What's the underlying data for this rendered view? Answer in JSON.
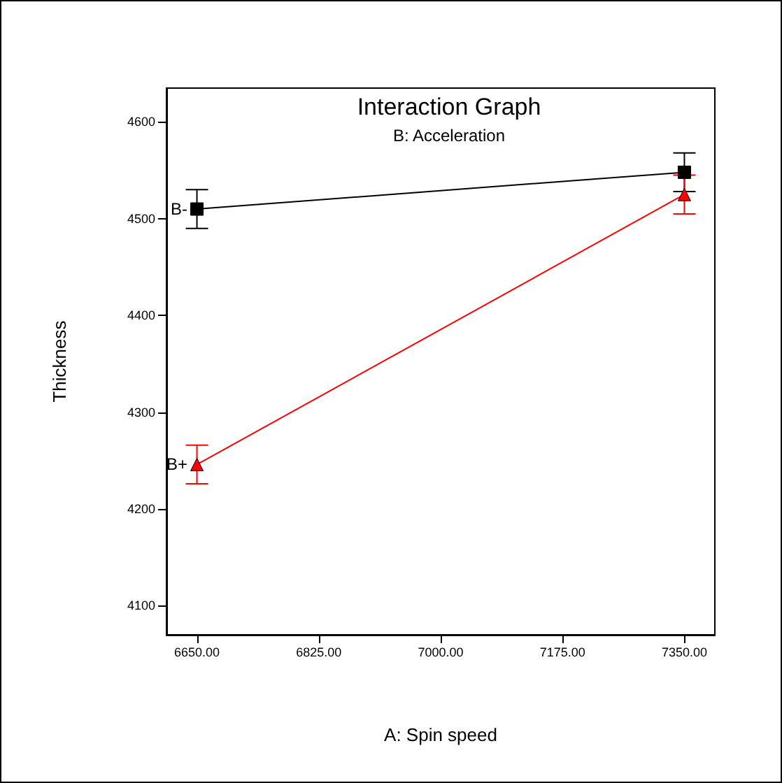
{
  "chart_data": {
    "type": "line",
    "title": "Interaction Graph",
    "subtitle": "B: Acceleration",
    "xlabel": "A: Spin speed",
    "ylabel": "Thickness",
    "x": [
      6650,
      7350
    ],
    "series": [
      {
        "name": "B-",
        "color": "#000000",
        "marker": "square",
        "values": [
          4510,
          4548
        ],
        "errors": [
          20,
          20
        ]
      },
      {
        "name": "B+",
        "color": "#ff0000",
        "marker": "triangle",
        "values": [
          4246,
          4525
        ],
        "errors": [
          20,
          20
        ]
      }
    ],
    "xlim": [
      6606.25,
      7393.75
    ],
    "xticks": [
      {
        "value": 6650,
        "label": "6650.00"
      },
      {
        "value": 6825,
        "label": "6825.00"
      },
      {
        "value": 7000,
        "label": "7000.00"
      },
      {
        "value": 7175,
        "label": "7175.00"
      },
      {
        "value": 7350,
        "label": "7350.00"
      }
    ],
    "ylim": [
      4070,
      4635
    ],
    "yticks": [
      4100,
      4200,
      4300,
      4400,
      4500,
      4600
    ],
    "grid": false,
    "legend": false,
    "line_style": "solid"
  }
}
